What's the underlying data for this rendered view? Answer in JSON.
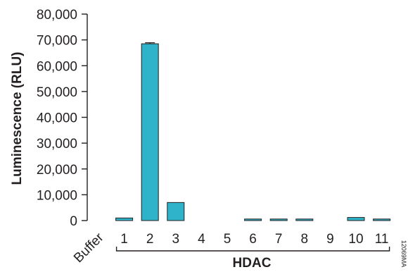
{
  "chart_data": {
    "type": "bar",
    "ylabel": "Luminescence (RLU)",
    "xlabel": "HDAC",
    "categories": [
      "Buffer",
      "1",
      "2",
      "3",
      "4",
      "5",
      "6",
      "7",
      "8",
      "9",
      "10",
      "11"
    ],
    "values": [
      0,
      1000,
      68500,
      7000,
      0,
      0,
      600,
      600,
      600,
      0,
      1200,
      600
    ],
    "errors": [
      0,
      0,
      400,
      0,
      0,
      0,
      0,
      0,
      0,
      0,
      0,
      0
    ],
    "ylim": [
      0,
      80000
    ],
    "yticks": [
      "0",
      "10,000",
      "20,000",
      "30,000",
      "40,000",
      "50,000",
      "60,000",
      "70,000",
      "80,000"
    ],
    "bar_color": "#2fb3cb",
    "grid": false,
    "bracket_under": [
      "1",
      "11"
    ]
  },
  "figure_id": "12069MA"
}
